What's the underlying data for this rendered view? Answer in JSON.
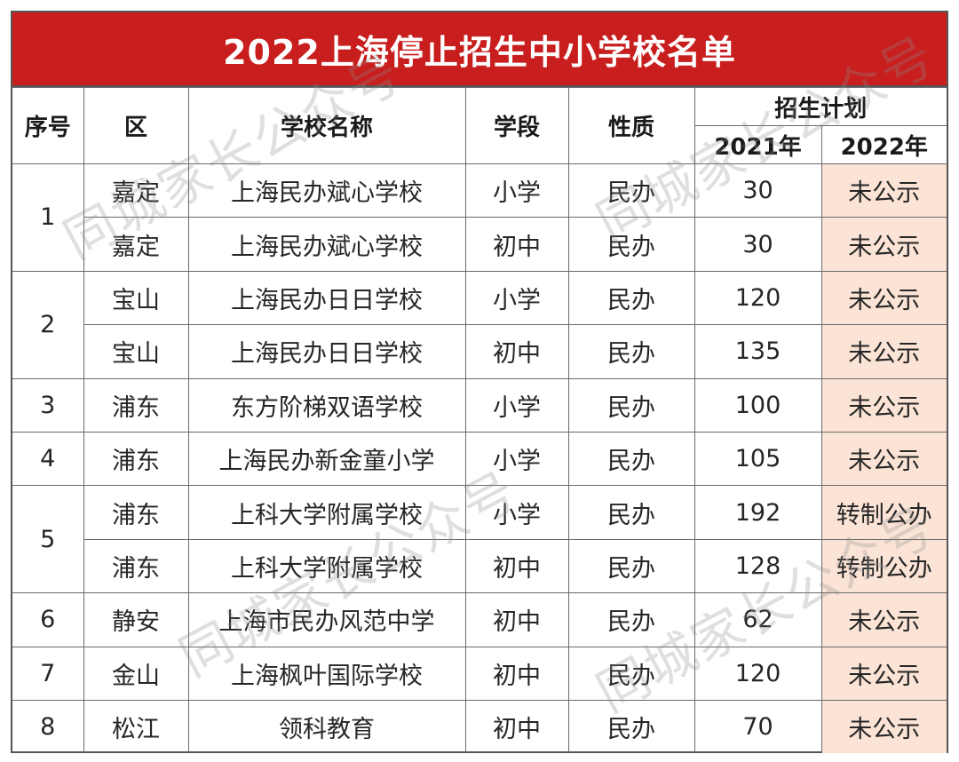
{
  "title": "2022上海停止招生中小学校名单",
  "headers": {
    "seq": "序号",
    "district": "区",
    "school": "学校名称",
    "stage": "学段",
    "nature": "性质",
    "plan": "招生计划",
    "plan_2021": "2021年",
    "plan_2022": "2022年"
  },
  "groups": [
    {
      "seq": "1",
      "rows": [
        {
          "district": "嘉定",
          "school": "上海民办斌心学校",
          "stage": "小学",
          "nature": "民办",
          "plan_2021": "30",
          "plan_2022": "未公示"
        },
        {
          "district": "嘉定",
          "school": "上海民办斌心学校",
          "stage": "初中",
          "nature": "民办",
          "plan_2021": "30",
          "plan_2022": "未公示"
        }
      ]
    },
    {
      "seq": "2",
      "rows": [
        {
          "district": "宝山",
          "school": "上海民办日日学校",
          "stage": "小学",
          "nature": "民办",
          "plan_2021": "120",
          "plan_2022": "未公示"
        },
        {
          "district": "宝山",
          "school": "上海民办日日学校",
          "stage": "初中",
          "nature": "民办",
          "plan_2021": "135",
          "plan_2022": "未公示"
        }
      ]
    },
    {
      "seq": "3",
      "rows": [
        {
          "district": "浦东",
          "school": "东方阶梯双语学校",
          "stage": "小学",
          "nature": "民办",
          "plan_2021": "100",
          "plan_2022": "未公示"
        }
      ]
    },
    {
      "seq": "4",
      "rows": [
        {
          "district": "浦东",
          "school": "上海民办新金童小学",
          "stage": "小学",
          "nature": "民办",
          "plan_2021": "105",
          "plan_2022": "未公示"
        }
      ]
    },
    {
      "seq": "5",
      "rows": [
        {
          "district": "浦东",
          "school": "上科大学附属学校",
          "stage": "小学",
          "nature": "民办",
          "plan_2021": "192",
          "plan_2022": "转制公办"
        },
        {
          "district": "浦东",
          "school": "上科大学附属学校",
          "stage": "初中",
          "nature": "民办",
          "plan_2021": "128",
          "plan_2022": "转制公办"
        }
      ]
    },
    {
      "seq": "6",
      "rows": [
        {
          "district": "静安",
          "school": "上海市民办风范中学",
          "stage": "初中",
          "nature": "民办",
          "plan_2021": "62",
          "plan_2022": "未公示"
        }
      ]
    },
    {
      "seq": "7",
      "rows": [
        {
          "district": "金山",
          "school": "上海枫叶国际学校",
          "stage": "初中",
          "nature": "民办",
          "plan_2021": "120",
          "plan_2022": "未公示"
        }
      ]
    },
    {
      "seq": "8",
      "rows": [
        {
          "district": "松江",
          "school": "领科教育",
          "stage": "初中",
          "nature": "民办",
          "plan_2021": "70",
          "plan_2022": "未公示"
        }
      ]
    }
  ],
  "watermark": "同城家长公众号",
  "colors": {
    "title_bg": "#c81e1e",
    "plan_2022_bg": "#fbe3d6"
  }
}
